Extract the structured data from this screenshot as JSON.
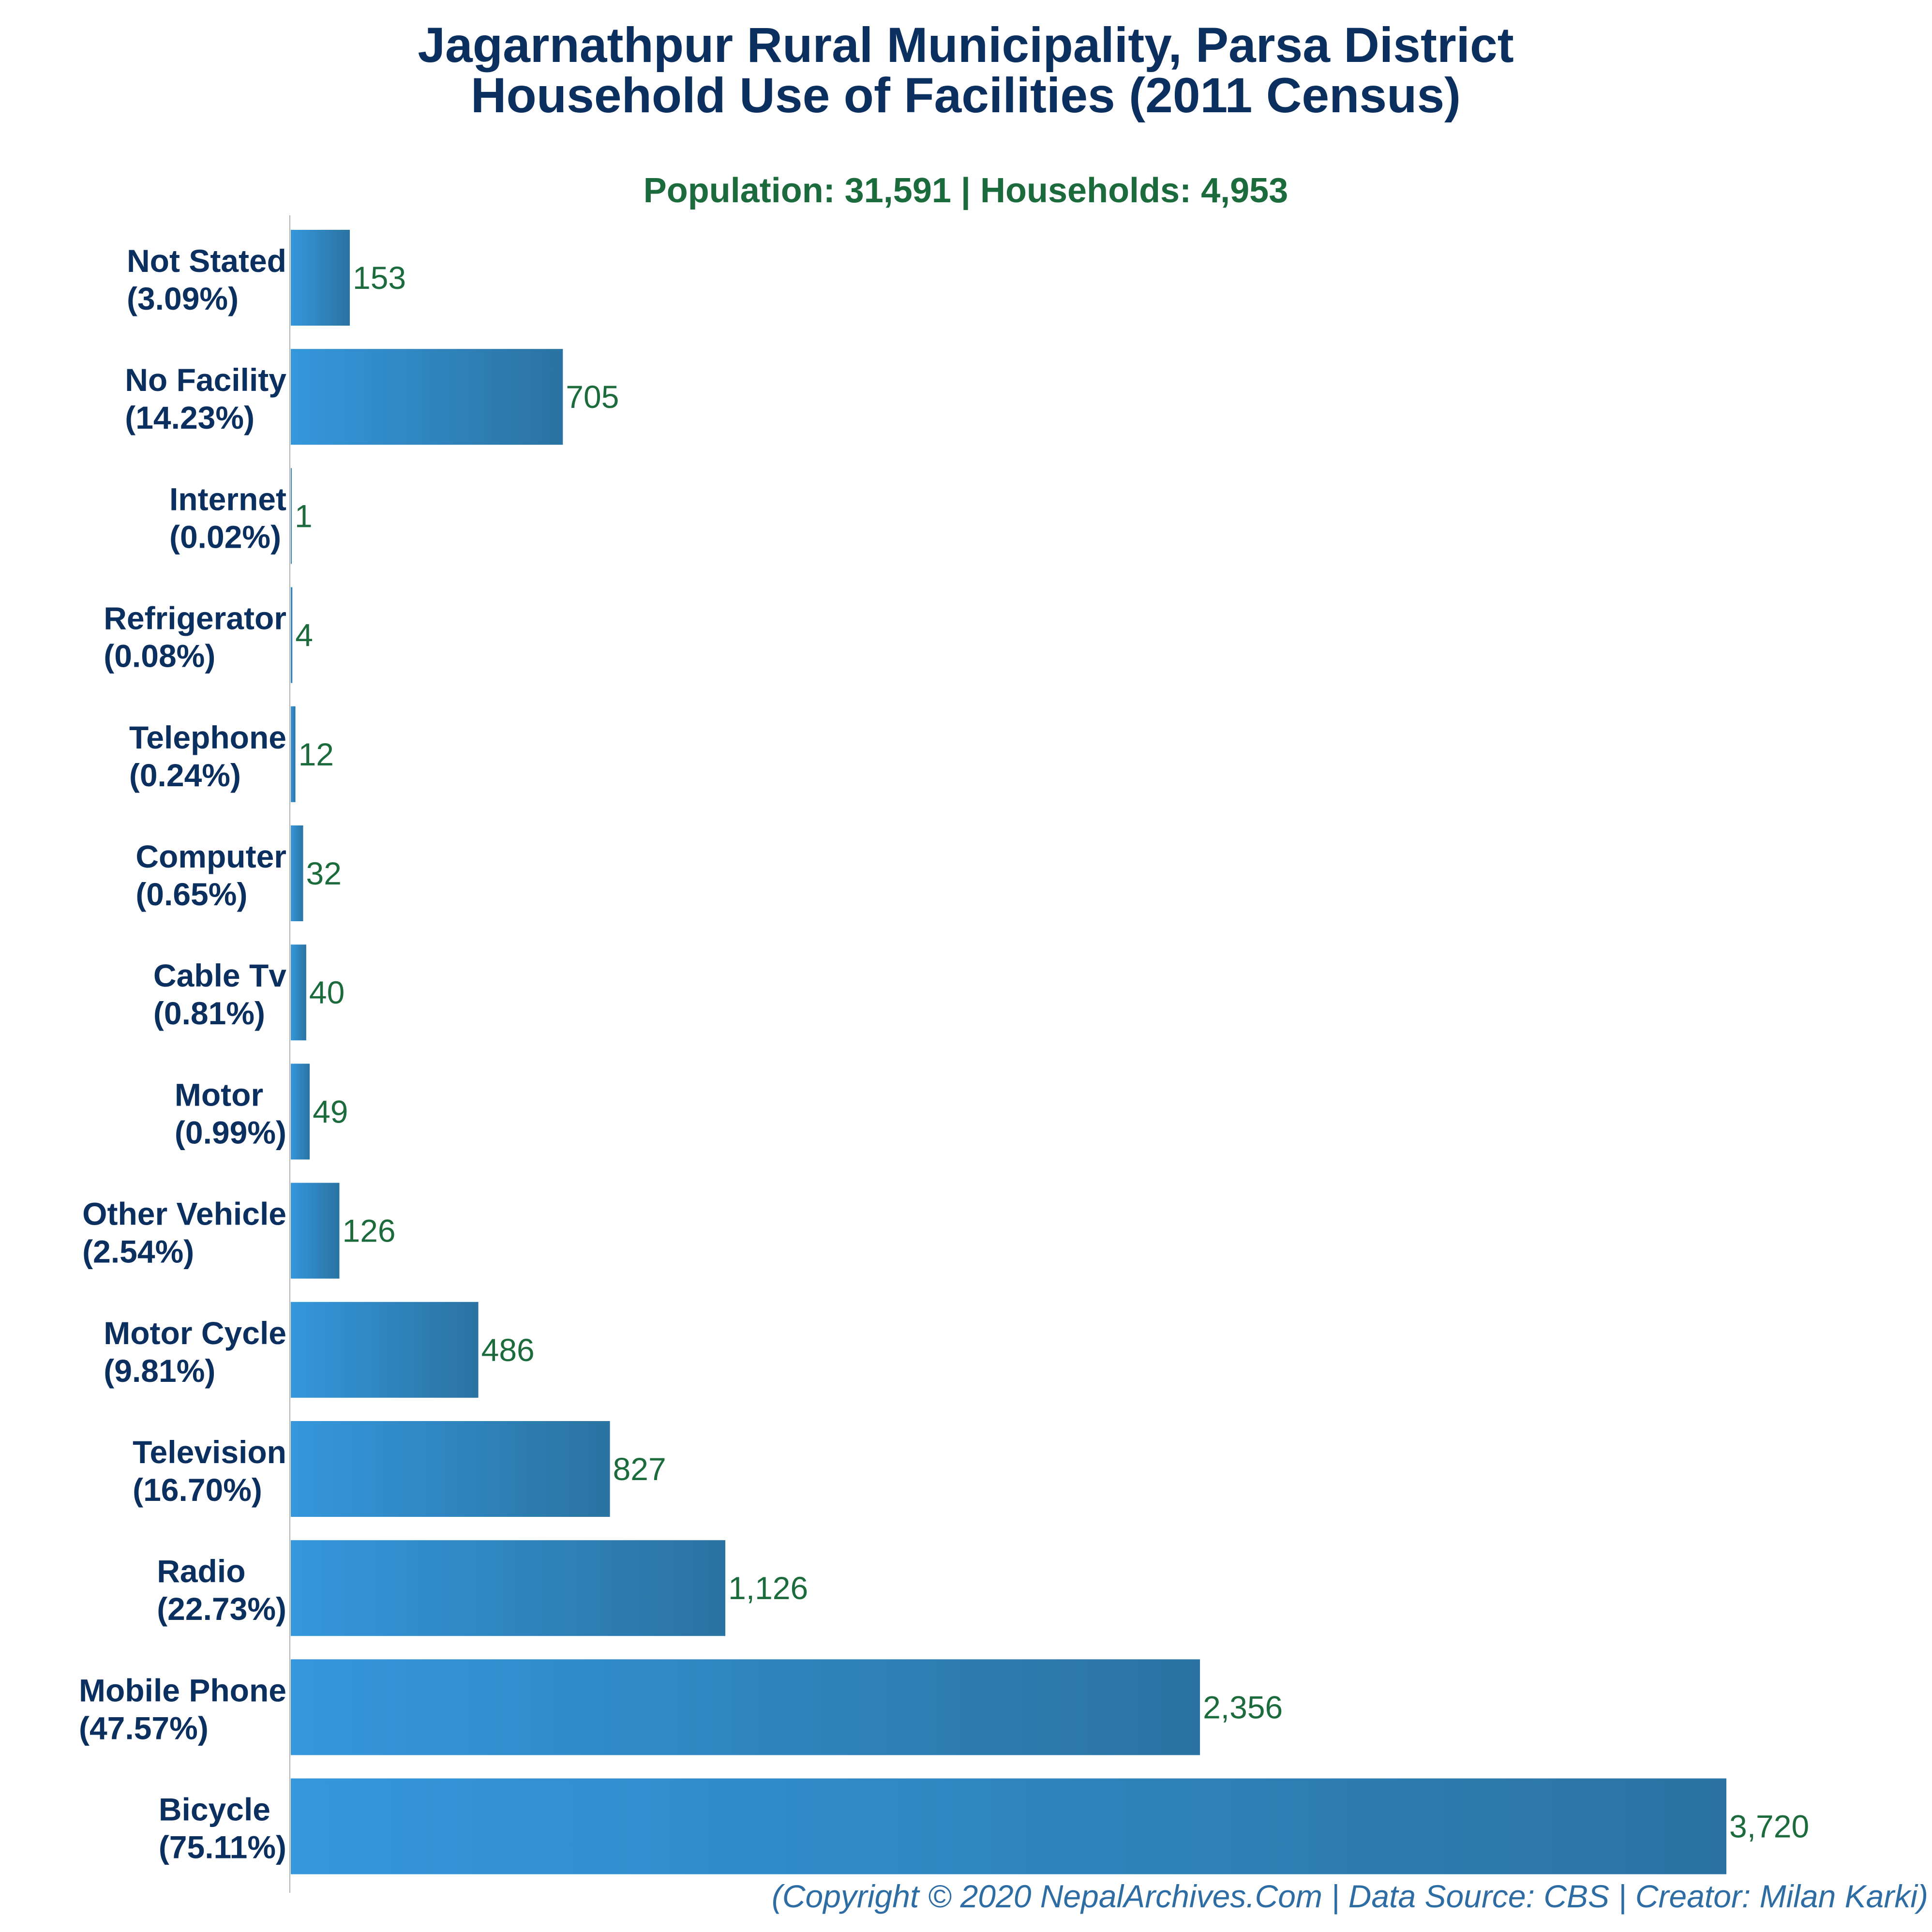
{
  "chart_data": {
    "type": "bar",
    "orientation": "horizontal",
    "title_line1": "Jagarnathpur Rural Municipality, Parsa District",
    "title_line2": "Household Use of Facilities (2011 Census)",
    "subtitle": "Population: 31,591 | Households: 4,953",
    "footer": "(Copyright © 2020 NepalArchives.Com | Data Source: CBS | Creator: Milan Karki)",
    "categories": [
      "Not Stated",
      "No Facility",
      "Internet",
      "Refrigerator",
      "Telephone",
      "Computer",
      "Cable Tv",
      "Motor",
      "Other Vehicle",
      "Motor Cycle",
      "Television",
      "Radio",
      "Mobile Phone",
      "Bicycle"
    ],
    "percent_labels": [
      "(3.09%)",
      "(14.23%)",
      "(0.02%)",
      "(0.08%)",
      "(0.24%)",
      "(0.65%)",
      "(0.81%)",
      "(0.99%)",
      "(2.54%)",
      "(9.81%)",
      "(16.70%)",
      "(22.73%)",
      "(47.57%)",
      "(75.11%)"
    ],
    "values": [
      153,
      705,
      1,
      4,
      12,
      32,
      40,
      49,
      126,
      486,
      827,
      1126,
      2356,
      3720
    ],
    "value_labels": [
      "153",
      "705",
      "1",
      "4",
      "12",
      "32",
      "40",
      "49",
      "126",
      "486",
      "827",
      "1,126",
      "2,356",
      "3,720"
    ],
    "xlim": [
      0,
      3720
    ],
    "grid": false,
    "colors": {
      "bar_start": "#3597dc",
      "bar_end": "#2a73a2",
      "axis": "#b0b0b0"
    }
  }
}
